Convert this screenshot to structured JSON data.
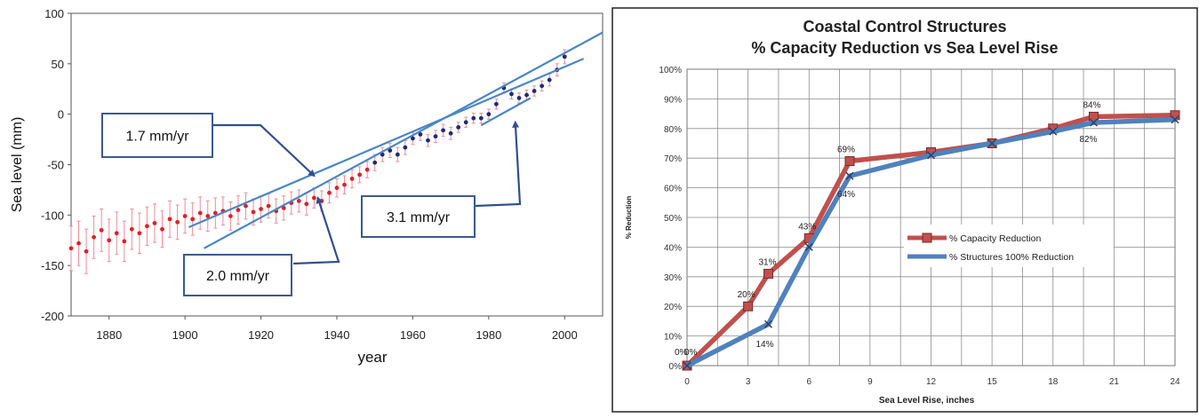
{
  "chart_data": [
    {
      "type": "scatter",
      "title": "",
      "xlabel": "year",
      "ylabel": "Sea level (mm)",
      "xlim": [
        1870,
        2010
      ],
      "ylim": [
        -200,
        100
      ],
      "x_ticks": [
        "1880",
        "1900",
        "1920",
        "1940",
        "1960",
        "1980",
        "2000"
      ],
      "y_ticks": [
        "100",
        "50",
        "0",
        "-50",
        "-100",
        "-150",
        "-200"
      ],
      "grid": false,
      "series_color": "#e0202a",
      "error_bar_color": "#f08c96",
      "late_series_color": "#1f2a7a",
      "trend_color": "#4a86c5",
      "series": [
        {
          "x": [
            1870,
            1872,
            1874,
            1876,
            1878,
            1880,
            1882,
            1884,
            1886,
            1888,
            1890,
            1892,
            1894,
            1896,
            1898,
            1900,
            1902,
            1904,
            1906,
            1908,
            1910,
            1912,
            1914,
            1916,
            1918,
            1920,
            1922,
            1924,
            1926,
            1928,
            1930,
            1932,
            1934,
            1936,
            1938,
            1940,
            1942,
            1944,
            1946,
            1948,
            1950,
            1952,
            1954,
            1956,
            1958,
            1960,
            1962,
            1964,
            1966,
            1968,
            1970,
            1972,
            1974,
            1976,
            1978,
            1980,
            1982,
            1984,
            1986,
            1988,
            1990,
            1992,
            1994,
            1996,
            1998,
            2000
          ],
          "y": [
            -133,
            -128,
            -136,
            -122,
            -115,
            -125,
            -118,
            -126,
            -114,
            -118,
            -111,
            -108,
            -114,
            -104,
            -107,
            -101,
            -104,
            -98,
            -101,
            -98,
            -96,
            -101,
            -95,
            -91,
            -97,
            -94,
            -91,
            -96,
            -93,
            -88,
            -86,
            -89,
            -83,
            -86,
            -78,
            -73,
            -70,
            -64,
            -60,
            -55,
            -48,
            -40,
            -36,
            -40,
            -33,
            -24,
            -20,
            -26,
            -22,
            -16,
            -19,
            -13,
            -8,
            -4,
            -4,
            0,
            10,
            26,
            20,
            16,
            19,
            23,
            28,
            34,
            44,
            57
          ],
          "err": [
            22,
            22,
            22,
            21,
            21,
            21,
            21,
            20,
            20,
            20,
            19,
            19,
            18,
            18,
            17,
            17,
            16,
            16,
            15,
            15,
            14,
            14,
            14,
            13,
            13,
            13,
            12,
            12,
            12,
            11,
            11,
            11,
            10,
            10,
            10,
            9,
            9,
            9,
            8,
            8,
            8,
            7,
            7,
            7,
            7,
            6,
            6,
            6,
            6,
            6,
            6,
            5,
            5,
            5,
            5,
            5,
            5,
            5,
            5,
            5,
            5,
            5,
            5,
            6,
            6,
            7
          ]
        }
      ],
      "trend_lines": [
        {
          "x": [
            1901,
            2005
          ],
          "y": [
            -112,
            55
          ]
        },
        {
          "x": [
            1905,
            2010
          ],
          "y": [
            -133,
            81
          ]
        },
        {
          "x": [
            1978,
            1991
          ],
          "y": [
            -11,
            16
          ]
        }
      ],
      "annotations": [
        {
          "text": "1.7 mm/yr",
          "x": 1927,
          "y": 1.9
        },
        {
          "text": "2.0 mm/yr",
          "x": 1935,
          "y": -166
        },
        {
          "text": "3.1 mm/yr",
          "x": 1973,
          "y": -109
        }
      ],
      "annotation_arrows": [
        {
          "label": "1.7 mm/yr",
          "x": 1934,
          "y": -61
        },
        {
          "label": "2.0 mm/yr",
          "x": 1935,
          "y": -83
        },
        {
          "label": "3.1 mm/yr",
          "x": 1987,
          "y": -8
        }
      ]
    },
    {
      "type": "line",
      "title": "Coastal Control Structures",
      "subtitle": "% Capacity Reduction vs Sea Level Rise",
      "xlabel": "Sea Level Rise, inches",
      "ylabel": "% Reduction",
      "xlim": [
        0,
        24
      ],
      "ylim": [
        0,
        100
      ],
      "x_ticks": [
        "0",
        "3",
        "6",
        "9",
        "12",
        "15",
        "18",
        "21",
        "24"
      ],
      "y_ticks": [
        "100%",
        "90%",
        "80%",
        "70%",
        "60%",
        "50%",
        "40%",
        "30%",
        "20%",
        "10%",
        "0%"
      ],
      "grid": true,
      "legend_position": "center-right",
      "series": [
        {
          "name": "% Capacity Reduction",
          "color": "#c0504d",
          "x": [
            0,
            3,
            4,
            6,
            8,
            12,
            15,
            18,
            20,
            24
          ],
          "y": [
            0,
            20,
            31,
            43,
            69,
            72,
            75,
            80,
            84,
            84.5
          ]
        },
        {
          "name": "% Structures 100% Reduction",
          "color": "#4f81bd",
          "x": [
            0,
            4,
            6,
            8,
            12,
            15,
            18,
            20,
            24
          ],
          "y": [
            0,
            14,
            40,
            64,
            71,
            75,
            79,
            82,
            83
          ]
        }
      ],
      "data_labels": [
        {
          "text": "0%",
          "x": 0,
          "y": 0
        },
        {
          "text": "0%",
          "x": 0,
          "y": 0
        },
        {
          "text": "20%",
          "x": 3,
          "y": 20
        },
        {
          "text": "31%",
          "x": 4,
          "y": 31
        },
        {
          "text": "43%",
          "x": 6,
          "y": 43
        },
        {
          "text": "69%",
          "x": 8,
          "y": 69
        },
        {
          "text": "84%",
          "x": 20,
          "y": 84
        },
        {
          "text": "14%",
          "x": 4,
          "y": 14
        },
        {
          "text": "64%",
          "x": 8,
          "y": 64
        },
        {
          "text": "82%",
          "x": 20,
          "y": 82
        }
      ]
    }
  ]
}
